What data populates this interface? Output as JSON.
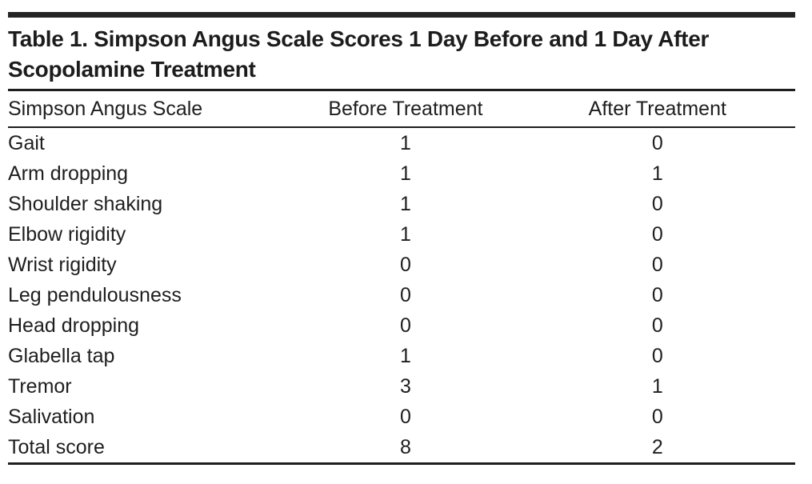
{
  "table": {
    "title": "Table 1. Simpson Angus Scale Scores 1 Day Before and 1 Day After Scopolamine Treatment",
    "columns": [
      "Simpson Angus Scale",
      "Before Treatment",
      "After Treatment"
    ],
    "rows": [
      {
        "label": "Gait",
        "before": "1",
        "after": "0"
      },
      {
        "label": "Arm dropping",
        "before": "1",
        "after": "1"
      },
      {
        "label": "Shoulder shaking",
        "before": "1",
        "after": "0"
      },
      {
        "label": "Elbow rigidity",
        "before": "1",
        "after": "0"
      },
      {
        "label": "Wrist rigidity",
        "before": "0",
        "after": "0"
      },
      {
        "label": "Leg pendulousness",
        "before": "0",
        "after": "0"
      },
      {
        "label": "Head dropping",
        "before": "0",
        "after": "0"
      },
      {
        "label": "Glabella tap",
        "before": "1",
        "after": "0"
      },
      {
        "label": "Tremor",
        "before": "3",
        "after": "1"
      },
      {
        "label": "Salivation",
        "before": "0",
        "after": "0"
      },
      {
        "label": "Total score",
        "before": "8",
        "after": "2"
      }
    ]
  },
  "colors": {
    "text": "#1e1e1e",
    "rule": "#1e1e1e",
    "top_bar": "#242424",
    "background": "#ffffff"
  }
}
